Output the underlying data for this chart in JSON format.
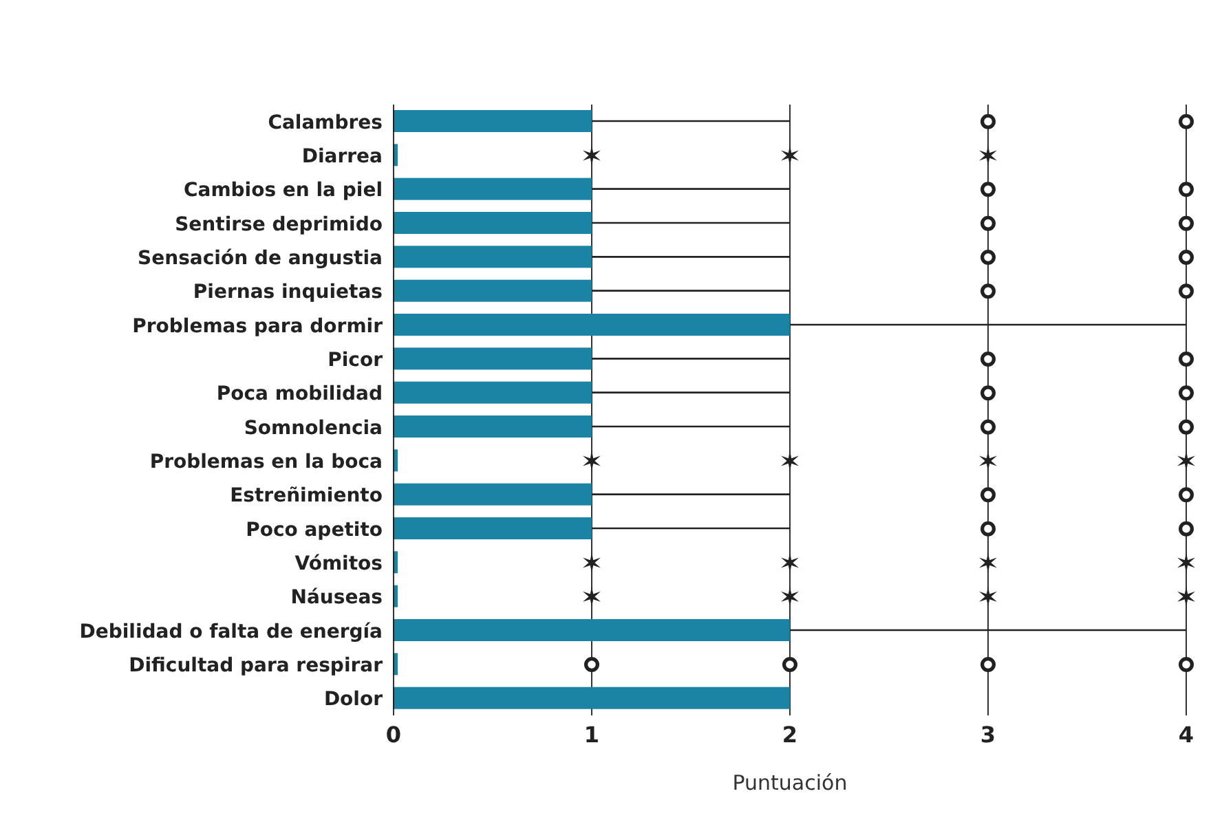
{
  "chart_data": {
    "type": "box",
    "orientation": "horizontal",
    "xlabel": "Puntuación",
    "color": "#1b83a3",
    "categories": [
      "Calambres",
      "Diarrea",
      "Cambios en la piel",
      "Sentirse deprimido",
      "Sensación de angustia",
      "Piernas inquietas",
      "Problemas para dormir",
      "Picor",
      "Poca mobilidad",
      "Somnolencia",
      "Problemas en la boca",
      "Estreñimiento",
      "Poco apetito",
      "Vómitos",
      "Náuseas",
      "Debilidad o falta de energía",
      "Dificultad para respirar",
      "Dolor"
    ],
    "boxes": [
      {
        "low": 0,
        "q1": 0,
        "median": 0,
        "q3": 1,
        "high": 2
      },
      {
        "low": 0,
        "q1": 0,
        "median": 0,
        "q3": 0,
        "high": 0
      },
      {
        "low": 0,
        "q1": 0,
        "median": 0,
        "q3": 1,
        "high": 2
      },
      {
        "low": 0,
        "q1": 0,
        "median": 0,
        "q3": 1,
        "high": 2
      },
      {
        "low": 0,
        "q1": 0,
        "median": 0,
        "q3": 1,
        "high": 2
      },
      {
        "low": 0,
        "q1": 0,
        "median": 0,
        "q3": 1,
        "high": 2
      },
      {
        "low": 0,
        "q1": 0,
        "median": 0,
        "q3": 2,
        "high": 4
      },
      {
        "low": 0,
        "q1": 0,
        "median": 0,
        "q3": 1,
        "high": 2
      },
      {
        "low": 0,
        "q1": 0,
        "median": 0,
        "q3": 1,
        "high": 2
      },
      {
        "low": 0,
        "q1": 0,
        "median": 0,
        "q3": 1,
        "high": 2
      },
      {
        "low": 0,
        "q1": 0,
        "median": 0,
        "q3": 0,
        "high": 0
      },
      {
        "low": 0,
        "q1": 0,
        "median": 0,
        "q3": 1,
        "high": 2
      },
      {
        "low": 0,
        "q1": 0,
        "median": 0,
        "q3": 1,
        "high": 2
      },
      {
        "low": 0,
        "q1": 0,
        "median": 0,
        "q3": 0,
        "high": 0
      },
      {
        "low": 0,
        "q1": 0,
        "median": 0,
        "q3": 0,
        "high": 0
      },
      {
        "low": 0,
        "q1": 0,
        "median": 0,
        "q3": 2,
        "high": 4
      },
      {
        "low": 0,
        "q1": 0,
        "median": 0,
        "q3": 0,
        "high": 0
      },
      {
        "low": 0,
        "q1": 0,
        "median": 0,
        "q3": 2,
        "high": 2
      }
    ],
    "series": [
      {
        "type": "scatter",
        "marker": "circle",
        "color": "#222222",
        "x": [
          "Calambres",
          "Calambres",
          "Cambios en la piel",
          "Cambios en la piel",
          "Sentirse deprimido",
          "Sentirse deprimido",
          "Sensación de angustia",
          "Sensación de angustia",
          "Piernas inquietas",
          "Piernas inquietas",
          "Picor",
          "Picor",
          "Poca mobilidad",
          "Poca mobilidad",
          "Somnolencia",
          "Somnolencia",
          "Estreñimiento",
          "Estreñimiento",
          "Poco apetito",
          "Poco apetito",
          "Dificultad para respirar",
          "Dificultad para respirar",
          "Dificultad para respirar",
          "Dificultad para respirar"
        ],
        "values": [
          3,
          4,
          3,
          4,
          3,
          4,
          3,
          4,
          3,
          4,
          3,
          4,
          3,
          4,
          3,
          4,
          3,
          4,
          3,
          4,
          1,
          2,
          3,
          4
        ]
      },
      {
        "type": "scatter",
        "marker": "cross",
        "color": "#222222",
        "x": [
          "Diarrea",
          "Diarrea",
          "Diarrea",
          "Problemas en la boca",
          "Problemas en la boca",
          "Problemas en la boca",
          "Problemas en la boca",
          "Vómitos",
          "Vómitos",
          "Vómitos",
          "Vómitos",
          "Náuseas",
          "Náuseas",
          "Náuseas",
          "Náuseas"
        ],
        "values": [
          1,
          2,
          3,
          1,
          2,
          3,
          4,
          1,
          2,
          3,
          4,
          1,
          2,
          3,
          4
        ]
      }
    ],
    "xlim": [
      0,
      4
    ],
    "xticks": [
      0,
      1,
      2,
      3,
      4
    ],
    "grid": "x"
  }
}
